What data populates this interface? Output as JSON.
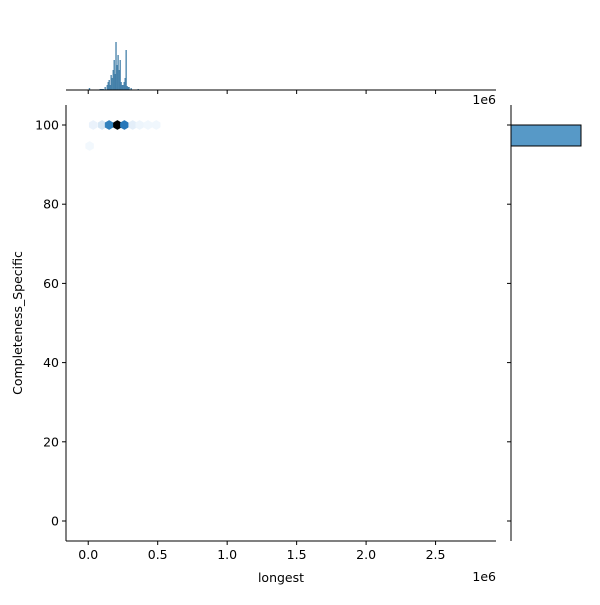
{
  "chart_data": {
    "type": "hexbin-jointplot",
    "xlabel": "longest",
    "ylabel": "Completeness_Specific",
    "x_offset_label": "1e6",
    "top_offset_label": "1e6",
    "xlim": [
      -0.16,
      2.935
    ],
    "ylim": [
      -5.05,
      105.05
    ],
    "x_scale_factor": 1000000,
    "x_ticks": [
      0.0,
      0.5,
      1.0,
      1.5,
      2.0,
      2.5
    ],
    "x_tick_labels": [
      "0.0",
      "0.5",
      "1.0",
      "1.5",
      "2.0",
      "2.5"
    ],
    "y_ticks": [
      0,
      20,
      40,
      60,
      80,
      100
    ],
    "y_tick_labels": [
      "0",
      "20",
      "40",
      "60",
      "80",
      "100"
    ],
    "colormap": "Blues",
    "bar_color": "#3274a1",
    "hexbins": [
      {
        "x": 0.036,
        "y": 100,
        "intensity": 0.08
      },
      {
        "x": 0.1,
        "y": 100,
        "intensity": 0.2
      },
      {
        "x": 0.15,
        "y": 100,
        "intensity": 0.7
      },
      {
        "x": 0.21,
        "y": 100,
        "intensity": 1.0
      },
      {
        "x": 0.26,
        "y": 100,
        "intensity": 0.75
      },
      {
        "x": 0.32,
        "y": 100,
        "intensity": 0.12
      },
      {
        "x": 0.37,
        "y": 100,
        "intensity": 0.06
      },
      {
        "x": 0.43,
        "y": 100,
        "intensity": 0.04
      },
      {
        "x": 0.49,
        "y": 100,
        "intensity": 0.04
      },
      {
        "x": 0.01,
        "y": 94.7,
        "intensity": 0.03
      }
    ],
    "x_marginal_hist": {
      "bin_centers": [
        0.009,
        0.086,
        0.093,
        0.1,
        0.108,
        0.122,
        0.137,
        0.144,
        0.151,
        0.158,
        0.165,
        0.172,
        0.18,
        0.187,
        0.194,
        0.2,
        0.208,
        0.215,
        0.223,
        0.23,
        0.237,
        0.244,
        0.251,
        0.259,
        0.266,
        0.273,
        0.28,
        0.287,
        0.294,
        0.309,
        0.36
      ],
      "counts": [
        2,
        1,
        1,
        1,
        1,
        3,
        5,
        8,
        10,
        5,
        15,
        12,
        20,
        30,
        16,
        48,
        25,
        35,
        20,
        30,
        8,
        5,
        5,
        8,
        12,
        40,
        4,
        3,
        3,
        2,
        1
      ]
    },
    "y_marginal_hist": {
      "bins": [
        [
          94.7,
          100
        ]
      ],
      "counts": [
        1
      ]
    }
  }
}
